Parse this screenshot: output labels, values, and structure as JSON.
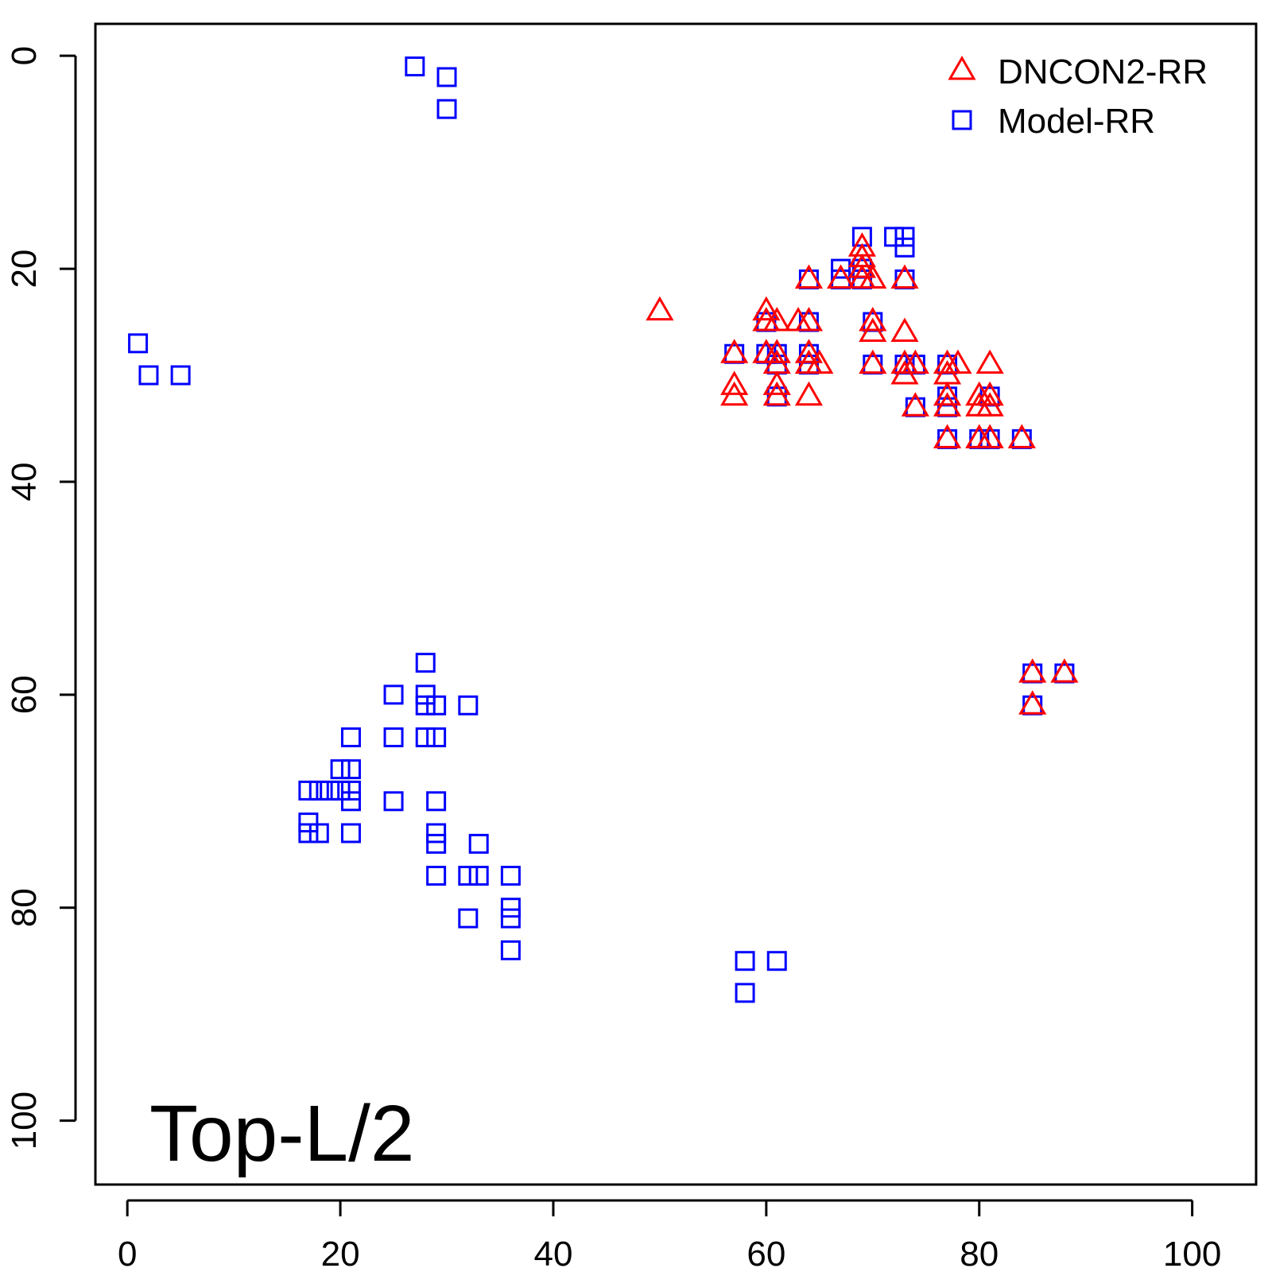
{
  "chart_data": {
    "type": "scatter",
    "title": "",
    "xlabel": "",
    "ylabel": "",
    "xlim": [
      -3,
      106
    ],
    "ylim": [
      -3,
      106
    ],
    "y_reversed": true,
    "xticks": [
      0,
      20,
      40,
      60,
      80,
      100
    ],
    "yticks": [
      0,
      20,
      40,
      60,
      80,
      100
    ],
    "xtick_labels": [
      "0",
      "20",
      "40",
      "60",
      "80",
      "100"
    ],
    "ytick_labels": [
      "0",
      "20",
      "40",
      "60",
      "80",
      "100"
    ],
    "grid": false,
    "legend_position": "top-right",
    "annotation": "Top-L/2",
    "series": [
      {
        "name": "DNCON2-RR",
        "marker": "triangle",
        "color": "#ff0000",
        "points": [
          [
            50,
            24
          ],
          [
            57,
            28
          ],
          [
            57,
            31
          ],
          [
            57,
            32
          ],
          [
            60,
            24
          ],
          [
            60,
            25
          ],
          [
            60,
            28
          ],
          [
            61,
            25
          ],
          [
            61,
            28
          ],
          [
            61,
            29
          ],
          [
            61,
            31
          ],
          [
            61,
            32
          ],
          [
            63,
            25
          ],
          [
            64,
            21
          ],
          [
            64,
            25
          ],
          [
            64,
            28
          ],
          [
            64,
            29
          ],
          [
            64,
            32
          ],
          [
            65,
            29
          ],
          [
            67,
            21
          ],
          [
            69,
            18
          ],
          [
            69,
            19
          ],
          [
            69,
            20
          ],
          [
            69,
            21
          ],
          [
            70,
            21
          ],
          [
            70,
            25
          ],
          [
            70,
            26
          ],
          [
            70,
            29
          ],
          [
            73,
            21
          ],
          [
            73,
            26
          ],
          [
            73,
            29
          ],
          [
            73,
            30
          ],
          [
            74,
            29
          ],
          [
            74,
            33
          ],
          [
            77,
            29
          ],
          [
            77,
            30
          ],
          [
            77,
            32
          ],
          [
            77,
            33
          ],
          [
            77,
            36
          ],
          [
            78,
            29
          ],
          [
            80,
            32
          ],
          [
            80,
            33
          ],
          [
            80,
            36
          ],
          [
            81,
            29
          ],
          [
            81,
            32
          ],
          [
            81,
            33
          ],
          [
            81,
            36
          ],
          [
            84,
            36
          ],
          [
            85,
            58
          ],
          [
            85,
            61
          ],
          [
            88,
            58
          ]
        ]
      },
      {
        "name": "Model-RR",
        "marker": "square",
        "color": "#0000ff",
        "points": [
          [
            27,
            1
          ],
          [
            30,
            2
          ],
          [
            30,
            5
          ],
          [
            1,
            27
          ],
          [
            2,
            30
          ],
          [
            5,
            30
          ],
          [
            57,
            28
          ],
          [
            60,
            25
          ],
          [
            60,
            28
          ],
          [
            61,
            28
          ],
          [
            61,
            29
          ],
          [
            61,
            32
          ],
          [
            64,
            21
          ],
          [
            64,
            25
          ],
          [
            64,
            28
          ],
          [
            64,
            29
          ],
          [
            67,
            20
          ],
          [
            67,
            21
          ],
          [
            69,
            17
          ],
          [
            69,
            20
          ],
          [
            69,
            21
          ],
          [
            70,
            25
          ],
          [
            70,
            29
          ],
          [
            72,
            17
          ],
          [
            73,
            17
          ],
          [
            73,
            18
          ],
          [
            73,
            21
          ],
          [
            73,
            29
          ],
          [
            74,
            29
          ],
          [
            74,
            33
          ],
          [
            77,
            29
          ],
          [
            77,
            32
          ],
          [
            77,
            33
          ],
          [
            77,
            36
          ],
          [
            80,
            36
          ],
          [
            81,
            32
          ],
          [
            81,
            36
          ],
          [
            84,
            36
          ],
          [
            85,
            58
          ],
          [
            85,
            61
          ],
          [
            88,
            58
          ],
          [
            28,
            57
          ],
          [
            25,
            60
          ],
          [
            28,
            60
          ],
          [
            28,
            61
          ],
          [
            29,
            61
          ],
          [
            32,
            61
          ],
          [
            21,
            64
          ],
          [
            25,
            64
          ],
          [
            28,
            64
          ],
          [
            29,
            64
          ],
          [
            20,
            67
          ],
          [
            21,
            67
          ],
          [
            17,
            69
          ],
          [
            18,
            69
          ],
          [
            19,
            69
          ],
          [
            20,
            69
          ],
          [
            21,
            69
          ],
          [
            21,
            70
          ],
          [
            25,
            70
          ],
          [
            29,
            70
          ],
          [
            17,
            72
          ],
          [
            17,
            73
          ],
          [
            18,
            73
          ],
          [
            21,
            73
          ],
          [
            29,
            73
          ],
          [
            29,
            74
          ],
          [
            33,
            74
          ],
          [
            29,
            77
          ],
          [
            32,
            77
          ],
          [
            33,
            77
          ],
          [
            36,
            77
          ],
          [
            36,
            80
          ],
          [
            36,
            81
          ],
          [
            32,
            81
          ],
          [
            36,
            84
          ],
          [
            58,
            85
          ],
          [
            61,
            85
          ],
          [
            58,
            88
          ]
        ]
      }
    ]
  }
}
